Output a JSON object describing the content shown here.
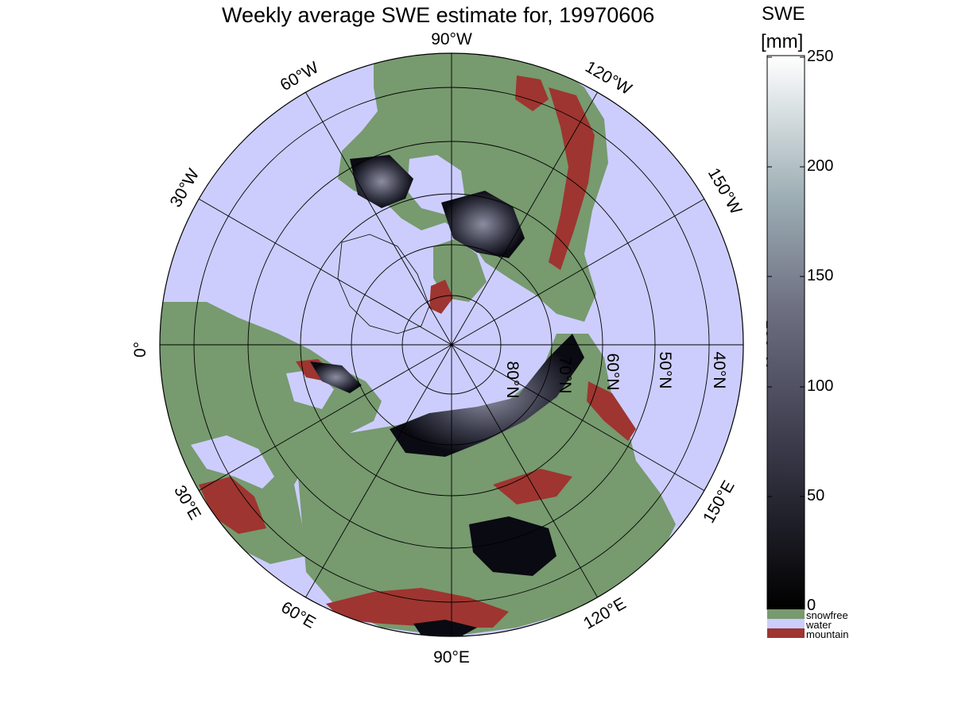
{
  "title": "Weekly average SWE estimate for, 19970606",
  "map": {
    "colors": {
      "water": "#cccdfd",
      "snowfree": "#779a6f",
      "mountain": "#9e3530",
      "snow_low": "#0a0a12",
      "snow_high": "#ffffff",
      "grid": "#000000"
    },
    "longitude_labels": [
      "90°W",
      "120°W",
      "150°W",
      "180°W",
      "150°E",
      "120°E",
      "90°E",
      "60°E",
      "30°E",
      "0°",
      "30°W",
      "60°W"
    ],
    "latitude_labels": [
      "80°N",
      "70°N",
      "60°N",
      "50°N",
      "40°N"
    ]
  },
  "legend": {
    "title": "SWE",
    "unit": "[mm]",
    "ticks": [
      "250",
      "200",
      "150",
      "100",
      "50",
      "0"
    ],
    "categories": [
      {
        "label": "snowfree",
        "color": "#779a6f"
      },
      {
        "label": "water",
        "color": "#cccdfd"
      },
      {
        "label": "mountain",
        "color": "#9e3530"
      }
    ]
  }
}
